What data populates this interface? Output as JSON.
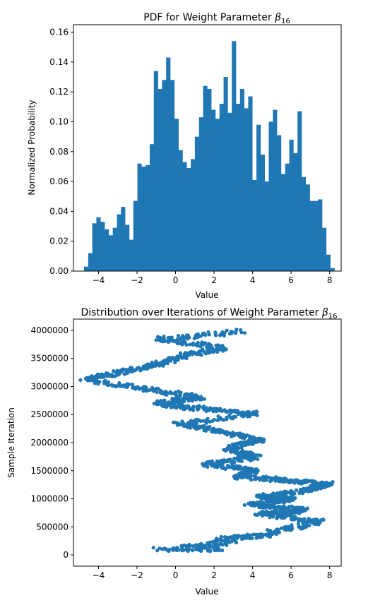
{
  "chart_data": [
    {
      "type": "bar",
      "title_prefix": "PDF for Weight Parameter ",
      "title_symbol": "β",
      "title_subscript": "16",
      "xlabel": "Value",
      "ylabel": "Normalized Probability",
      "xlim": [
        -5.3,
        8.6
      ],
      "ylim": [
        0,
        0.165
      ],
      "xticks": [
        -4,
        -2,
        0,
        2,
        4,
        6,
        8
      ],
      "yticks": [
        0.0,
        0.02,
        0.04,
        0.06,
        0.08,
        0.1,
        0.12,
        0.14,
        0.16
      ],
      "ytick_labels": [
        "0.00",
        "0.02",
        "0.04",
        "0.06",
        "0.08",
        "0.10",
        "0.12",
        "0.14",
        "0.16"
      ],
      "bin_edges_range": [
        -4.75,
        8.25
      ],
      "values": [
        0.003,
        0.012,
        0.032,
        0.036,
        0.033,
        0.028,
        0.024,
        0.029,
        0.038,
        0.043,
        0.031,
        0.021,
        0.047,
        0.072,
        0.07,
        0.071,
        0.085,
        0.134,
        0.122,
        0.128,
        0.143,
        0.128,
        0.102,
        0.081,
        0.073,
        0.069,
        0.075,
        0.09,
        0.103,
        0.124,
        0.122,
        0.108,
        0.102,
        0.112,
        0.13,
        0.106,
        0.154,
        0.112,
        0.122,
        0.109,
        0.117,
        0.061,
        0.098,
        0.078,
        0.06,
        0.1,
        0.108,
        0.091,
        0.065,
        0.072,
        0.088,
        0.079,
        0.107,
        0.063,
        0.058,
        0.047,
        0.047,
        0.048,
        0.029,
        0.011,
        0.002
      ],
      "color": "#1f77b4",
      "grid": false
    },
    {
      "type": "scatter",
      "title_prefix": "Distribution over Iterations of Weight Parameter ",
      "title_symbol": "β",
      "title_subscript": "16",
      "xlabel": "Value",
      "ylabel": "Sample Iteration",
      "xlim": [
        -5.3,
        8.6
      ],
      "ylim": [
        -200000,
        4200000
      ],
      "xticks": [
        -4,
        -2,
        0,
        2,
        4,
        6,
        8
      ],
      "yticks": [
        0,
        500000,
        1000000,
        1500000,
        2000000,
        2500000,
        3000000,
        3500000,
        4000000
      ],
      "ytick_labels": [
        "0",
        "500000",
        "1000000",
        "1500000",
        "2000000",
        "2500000",
        "3000000",
        "3500000",
        "4000000"
      ],
      "segments": [
        {
          "x": [
            -0.9,
            2.4
          ],
          "y": [
            100000,
            100000
          ],
          "spread": 35000
        },
        {
          "x": [
            0.5,
            3.2
          ],
          "y": [
            120000,
            260000
          ],
          "spread": 50000
        },
        {
          "x": [
            2.2,
            4.8
          ],
          "y": [
            280000,
            360000
          ],
          "spread": 40000
        },
        {
          "x": [
            4.6,
            7.6
          ],
          "y": [
            380000,
            600000
          ],
          "spread": 45000
        },
        {
          "x": [
            7.5,
            4.4
          ],
          "y": [
            600000,
            730000
          ],
          "spread": 40000
        },
        {
          "x": [
            4.3,
            6.8
          ],
          "y": [
            730000,
            800000
          ],
          "spread": 45000
        },
        {
          "x": [
            6.7,
            4.0
          ],
          "y": [
            800000,
            900000
          ],
          "spread": 40000
        },
        {
          "x": [
            3.8,
            6.0
          ],
          "y": [
            900000,
            1000000
          ],
          "spread": 40000
        },
        {
          "x": [
            6.0,
            4.4
          ],
          "y": [
            1000000,
            1040000
          ],
          "spread": 30000
        },
        {
          "x": [
            4.4,
            6.8
          ],
          "y": [
            1040000,
            1140000
          ],
          "spread": 40000
        },
        {
          "x": [
            6.7,
            8.0
          ],
          "y": [
            1150000,
            1270000
          ],
          "spread": 40000
        },
        {
          "x": [
            7.9,
            5.7
          ],
          "y": [
            1260000,
            1330000
          ],
          "spread": 30000
        },
        {
          "x": [
            5.7,
            3.2
          ],
          "y": [
            1330000,
            1400000
          ],
          "spread": 40000
        },
        {
          "x": [
            3.3,
            4.1
          ],
          "y": [
            1400000,
            1500000
          ],
          "spread": 50000
        },
        {
          "x": [
            4.1,
            1.5
          ],
          "y": [
            1500000,
            1620000
          ],
          "spread": 40000
        },
        {
          "x": [
            1.5,
            4.2
          ],
          "y": [
            1620000,
            1740000
          ],
          "spread": 40000
        },
        {
          "x": [
            4.2,
            2.8
          ],
          "y": [
            1740000,
            1900000
          ],
          "spread": 50000
        },
        {
          "x": [
            2.7,
            4.5
          ],
          "y": [
            1900000,
            2060000
          ],
          "spread": 50000
        },
        {
          "x": [
            4.4,
            2.3
          ],
          "y": [
            2060000,
            2200000
          ],
          "spread": 40000
        },
        {
          "x": [
            2.3,
            0.1
          ],
          "y": [
            2200000,
            2330000
          ],
          "spread": 40000
        },
        {
          "x": [
            0.1,
            4.3
          ],
          "y": [
            2330000,
            2520000
          ],
          "spread": 40000
        },
        {
          "x": [
            4.2,
            1.5
          ],
          "y": [
            2520000,
            2600000
          ],
          "spread": 30000
        },
        {
          "x": [
            1.5,
            -1.0
          ],
          "y": [
            2600000,
            2700000
          ],
          "spread": 40000
        },
        {
          "x": [
            -1.0,
            1.3
          ],
          "y": [
            2700000,
            2800000
          ],
          "spread": 40000
        },
        {
          "x": [
            1.3,
            -1.6
          ],
          "y": [
            2800000,
            2960000
          ],
          "spread": 40000
        },
        {
          "x": [
            -1.6,
            -4.7
          ],
          "y": [
            2960000,
            3130000
          ],
          "spread": 40000
        },
        {
          "x": [
            -4.6,
            -3.4
          ],
          "y": [
            3130000,
            3220000
          ],
          "spread": 30000
        },
        {
          "x": [
            -3.4,
            -1.2
          ],
          "y": [
            3220000,
            3370000
          ],
          "spread": 40000
        },
        {
          "x": [
            -1.2,
            0.5
          ],
          "y": [
            3370000,
            3550000
          ],
          "spread": 50000
        },
        {
          "x": [
            0.4,
            2.6
          ],
          "y": [
            3550000,
            3690000
          ],
          "spread": 40000
        },
        {
          "x": [
            2.5,
            -0.9
          ],
          "y": [
            3690000,
            3840000
          ],
          "spread": 40000
        },
        {
          "x": [
            -0.9,
            3.4
          ],
          "y": [
            3840000,
            3980000
          ],
          "spread": 40000
        }
      ],
      "color": "#1f77b4",
      "grid": false
    }
  ]
}
